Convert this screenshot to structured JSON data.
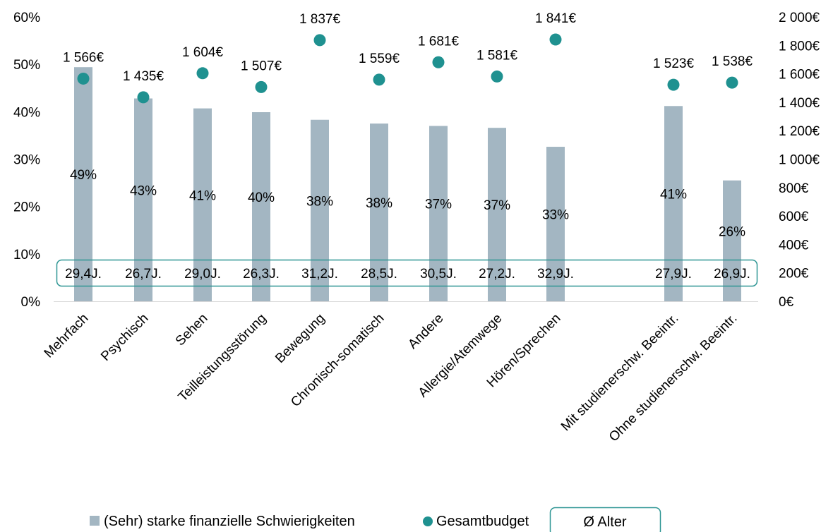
{
  "chart_data": {
    "type": "bar",
    "categories": [
      "Mehrfach",
      "Psychisch",
      "Sehen",
      "Teilleistungsstörung",
      "Bewegung",
      "Chronisch-somatisch",
      "Andere",
      "Allergie/Atemwege",
      "Hören/Sprechen",
      "Mit studienerschw. Beeintr.",
      "Ohne studienerschw. Beeintr."
    ],
    "series": [
      {
        "name": "(Sehr) starke finanzielle Schwierigkeiten",
        "type": "bar",
        "axis": "left",
        "values": [
          49,
          43,
          41,
          40,
          38,
          38,
          37,
          37,
          33,
          41,
          26
        ],
        "plot_values": [
          49.4,
          42.8,
          40.7,
          39.9,
          38.3,
          37.5,
          37.0,
          36.6,
          32.6,
          41.2,
          25.5
        ],
        "labels": [
          "49%",
          "43%",
          "41%",
          "40%",
          "38%",
          "38%",
          "37%",
          "37%",
          "33%",
          "41%",
          "26%"
        ],
        "color": "#a3b6c2"
      },
      {
        "name": "Gesamtbudget",
        "type": "scatter",
        "axis": "right",
        "values": [
          1566,
          1435,
          1604,
          1507,
          1837,
          1559,
          1681,
          1581,
          1841,
          1523,
          1538
        ],
        "labels": [
          "1 566€",
          "1 435€",
          "1 604€",
          "1 507€",
          "1 837€",
          "1 559€",
          "1 681€",
          "1 581€",
          "1 841€",
          "1 523€",
          "1 538€"
        ],
        "color": "#1f9190"
      }
    ],
    "age": {
      "name": "Ø Alter",
      "values": [
        29.4,
        26.7,
        29.0,
        26.3,
        31.2,
        28.5,
        30.5,
        27.2,
        32.9,
        27.9,
        26.9
      ],
      "labels": [
        "29,4J.",
        "26,7J.",
        "29,0J.",
        "26,3J.",
        "31,2J.",
        "28,5J.",
        "30,5J.",
        "27,2J.",
        "32,9J.",
        "27,9J.",
        "26,9J."
      ]
    },
    "y_left": {
      "ylim": [
        0,
        60
      ],
      "ticks": [
        0,
        10,
        20,
        30,
        40,
        50,
        60
      ],
      "tick_labels": [
        "0%",
        "10%",
        "20%",
        "30%",
        "40%",
        "50%",
        "60%"
      ]
    },
    "y_right": {
      "ylim": [
        0,
        2000
      ],
      "ticks": [
        0,
        200,
        400,
        600,
        800,
        1000,
        1200,
        1400,
        1600,
        1800,
        2000
      ],
      "tick_labels": [
        "0€",
        "200€",
        "400€",
        "600€",
        "800€",
        "1 000€",
        "1 200€",
        "1 400€",
        "1 600€",
        "1 800€",
        "2 000€"
      ]
    },
    "title": "",
    "xlabel": "",
    "ylabel": "",
    "grid": false,
    "legend": "bottom",
    "category_gap_after_index": 8,
    "colors": {
      "bar": "#a3b6c2",
      "dot": "#1f9190",
      "box_border": "#2e9694",
      "axis": "#d9d9d9"
    }
  }
}
